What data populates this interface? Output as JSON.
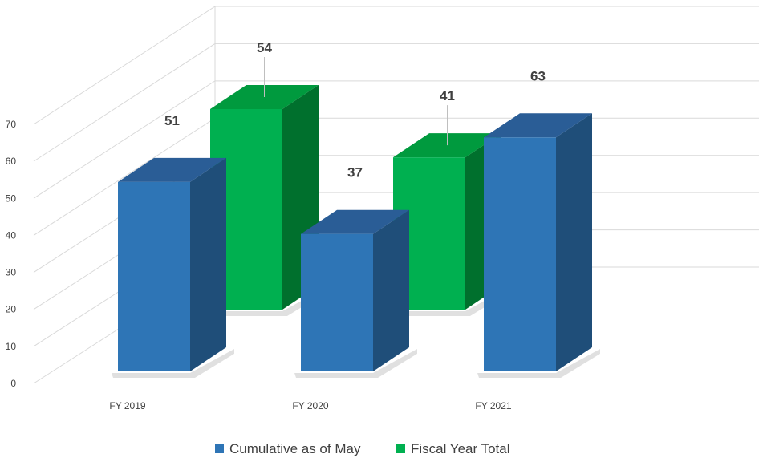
{
  "chart_data": {
    "type": "bar",
    "subtype": "3d-clustered-column",
    "categories": [
      "FY 2019",
      "FY 2020",
      "FY 2021"
    ],
    "series": [
      {
        "name": "Cumulative as of May",
        "values": [
          51,
          37,
          63
        ],
        "color": "#2E75B6",
        "top_color": "#2A5D96",
        "side_color": "#1F4E79"
      },
      {
        "name": "Fiscal Year Total",
        "values": [
          54,
          41,
          null
        ],
        "color": "#00B050",
        "top_color": "#009A3E",
        "side_color": "#00702D"
      }
    ],
    "yticks": [
      0,
      10,
      20,
      30,
      40,
      50,
      60,
      70
    ],
    "ylim": [
      0,
      70
    ],
    "grid": true,
    "data_labels": true,
    "legend_position": "bottom"
  }
}
